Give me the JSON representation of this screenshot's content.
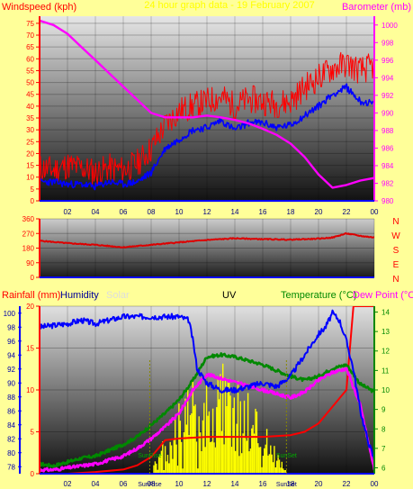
{
  "chart_data": [
    {
      "type": "line",
      "panel": "wind-barometer",
      "title": "24 hour graph data - 19 February 2007",
      "ylabel_left": "Windspeed (kph)",
      "ylabel_right": "Barometer (mb)",
      "x_ticks": [
        "02",
        "04",
        "06",
        "08",
        "10",
        "12",
        "14",
        "16",
        "18",
        "20",
        "22",
        "00"
      ],
      "y_left_ticks": [
        "0",
        "5",
        "10",
        "15",
        "20",
        "25",
        "30",
        "35",
        "40",
        "45",
        "50",
        "55",
        "60",
        "65",
        "70",
        "75"
      ],
      "y_right_ticks": [
        "980",
        "982",
        "984",
        "986",
        "988",
        "990",
        "992",
        "994",
        "996",
        "998",
        "1000"
      ],
      "ylim_left": [
        0,
        78
      ],
      "ylim_right": [
        980,
        1001
      ],
      "series": [
        {
          "color": "#ff0000",
          "axis": "left",
          "x": [
            0,
            1,
            2,
            3,
            4,
            5,
            6,
            7,
            8,
            9,
            10,
            11,
            12,
            13,
            14,
            15,
            16,
            17,
            18,
            19,
            20,
            21,
            22,
            23,
            24
          ],
          "values": [
            14,
            13,
            15,
            14,
            12,
            14,
            13,
            16,
            22,
            32,
            38,
            40,
            42,
            44,
            40,
            43,
            42,
            41,
            42,
            48,
            52,
            56,
            58,
            55,
            57
          ]
        },
        {
          "color": "#0000ff",
          "axis": "left",
          "x": [
            0,
            1,
            2,
            3,
            4,
            5,
            6,
            7,
            8,
            9,
            10,
            11,
            12,
            13,
            14,
            15,
            16,
            17,
            18,
            19,
            20,
            21,
            22,
            23,
            24
          ],
          "values": [
            8,
            8,
            7,
            7,
            6,
            8,
            7,
            8,
            12,
            22,
            26,
            30,
            31,
            34,
            30,
            33,
            33,
            31,
            32,
            36,
            40,
            45,
            48,
            42,
            41
          ]
        },
        {
          "color": "#ff00ff",
          "axis": "right",
          "x": [
            0,
            1,
            2,
            3,
            4,
            5,
            6,
            7,
            8,
            9,
            10,
            11,
            12,
            13,
            14,
            15,
            16,
            17,
            18,
            19,
            20,
            21,
            22,
            23,
            24
          ],
          "values": [
            1000.5,
            1000,
            999,
            997.5,
            996,
            994.5,
            993,
            991.5,
            990,
            989.5,
            989.5,
            989.5,
            989.7,
            989.5,
            989.2,
            988.8,
            988.2,
            987.5,
            986.5,
            985,
            983,
            981.5,
            981.8,
            982.3,
            982.6
          ]
        }
      ]
    },
    {
      "type": "line",
      "panel": "wind-direction",
      "x_ticks": [
        "02",
        "04",
        "06",
        "08",
        "10",
        "12",
        "14",
        "16",
        "18",
        "20",
        "22",
        "00"
      ],
      "y_left_ticks": [
        "0",
        "90",
        "180",
        "270",
        "360"
      ],
      "compass": [
        "N",
        "W",
        "S",
        "E",
        "N"
      ],
      "ylim_left": [
        0,
        360
      ],
      "series": [
        {
          "color": "#dd0000",
          "x": [
            0,
            2,
            4,
            6,
            8,
            10,
            12,
            14,
            16,
            18,
            20,
            21,
            22,
            23,
            24
          ],
          "values": [
            225,
            210,
            200,
            185,
            200,
            215,
            230,
            240,
            235,
            232,
            238,
            245,
            270,
            255,
            245
          ]
        }
      ]
    },
    {
      "type": "line",
      "panel": "rain-humidity-uv-temperature",
      "labels": {
        "rainfall": "Rainfall (mm)",
        "humidity": "Humidity",
        "solar": "Solar",
        "uv": "UV",
        "temperature": "Temperature (°C)",
        "dewpoint": "Dew Point (°C)"
      },
      "x_ticks": [
        "02",
        "04",
        "06",
        "08",
        "10",
        "12",
        "14",
        "16",
        "18",
        "20",
        "22",
        "00"
      ],
      "sun_labels": [
        "SunRise",
        "SunSet"
      ],
      "y_rain_ticks": [
        "0",
        "5",
        "10",
        "15",
        "20"
      ],
      "y_hum_ticks": [
        "78",
        "80",
        "82",
        "84",
        "86",
        "88",
        "90",
        "92",
        "94",
        "96",
        "98",
        "100"
      ],
      "y_temp_ticks": [
        "6",
        "7",
        "8",
        "9",
        "10",
        "11",
        "12",
        "13",
        "14"
      ],
      "ylim_rain": [
        0,
        20
      ],
      "ylim_temp": [
        5.7,
        14.3
      ],
      "sun_hours": [
        7.9,
        17.7
      ],
      "series": [
        {
          "name": "Humidity",
          "color": "#0000ff",
          "axis": "humidity",
          "x": [
            0,
            2,
            3,
            4,
            6,
            8,
            9,
            10,
            10.7,
            11,
            11.3,
            12,
            13,
            14,
            15,
            16,
            17,
            18,
            19,
            20,
            20.5,
            21,
            21.5,
            22,
            22.5,
            23,
            23.5,
            24
          ],
          "values": [
            98,
            98.5,
            99,
            98.5,
            99.5,
            99.5,
            99.5,
            99.5,
            99,
            96,
            92,
            90,
            89,
            89,
            89.5,
            90,
            89.5,
            91,
            94,
            97,
            98,
            100,
            99,
            96,
            92,
            86,
            82,
            79
          ]
        },
        {
          "name": "Rainfall",
          "color": "#ff0000",
          "axis": "rain",
          "x": [
            0,
            2,
            4,
            6,
            7,
            8,
            8.5,
            9,
            10,
            11,
            12,
            14,
            16,
            18,
            19,
            20,
            21,
            22,
            22.5,
            23,
            23.5,
            24
          ],
          "values": [
            0,
            0,
            0.2,
            0.5,
            1,
            2,
            3,
            4,
            4.2,
            4.3,
            4.4,
            4.4,
            4.4,
            4.6,
            5,
            6,
            8,
            10,
            20,
            20,
            20,
            20
          ]
        },
        {
          "name": "Temperature",
          "color": "#008800",
          "axis": "temp",
          "x": [
            0,
            1,
            2,
            3,
            4,
            5,
            6,
            7,
            8,
            9,
            10,
            11,
            12,
            13,
            14,
            15,
            16,
            17,
            18,
            19,
            20,
            21,
            22,
            23,
            24
          ],
          "values": [
            6.2,
            6.1,
            6.3,
            6.5,
            6.6,
            6.9,
            7.2,
            7.6,
            8.2,
            8.8,
            9.5,
            10.5,
            11.7,
            11.8,
            11.7,
            11.5,
            11.3,
            11,
            10.7,
            10.5,
            10.7,
            11.1,
            11.3,
            10.3,
            9.9
          ]
        },
        {
          "name": "Dew Point",
          "color": "#ff00ff",
          "axis": "temp",
          "x": [
            0,
            1,
            2,
            3,
            4,
            5,
            6,
            7,
            8,
            9,
            10,
            11,
            12,
            13,
            14,
            15,
            16,
            17,
            18,
            19,
            20,
            21,
            22,
            23,
            24
          ],
          "values": [
            5.9,
            5.9,
            6,
            6.1,
            6.2,
            6.4,
            6.6,
            7,
            7.5,
            8.1,
            8.8,
            10,
            10.8,
            10.6,
            10.4,
            10.2,
            10,
            9.8,
            9.6,
            9.9,
            10.5,
            10.9,
            11.1,
            9.2,
            5.9
          ]
        }
      ]
    }
  ]
}
